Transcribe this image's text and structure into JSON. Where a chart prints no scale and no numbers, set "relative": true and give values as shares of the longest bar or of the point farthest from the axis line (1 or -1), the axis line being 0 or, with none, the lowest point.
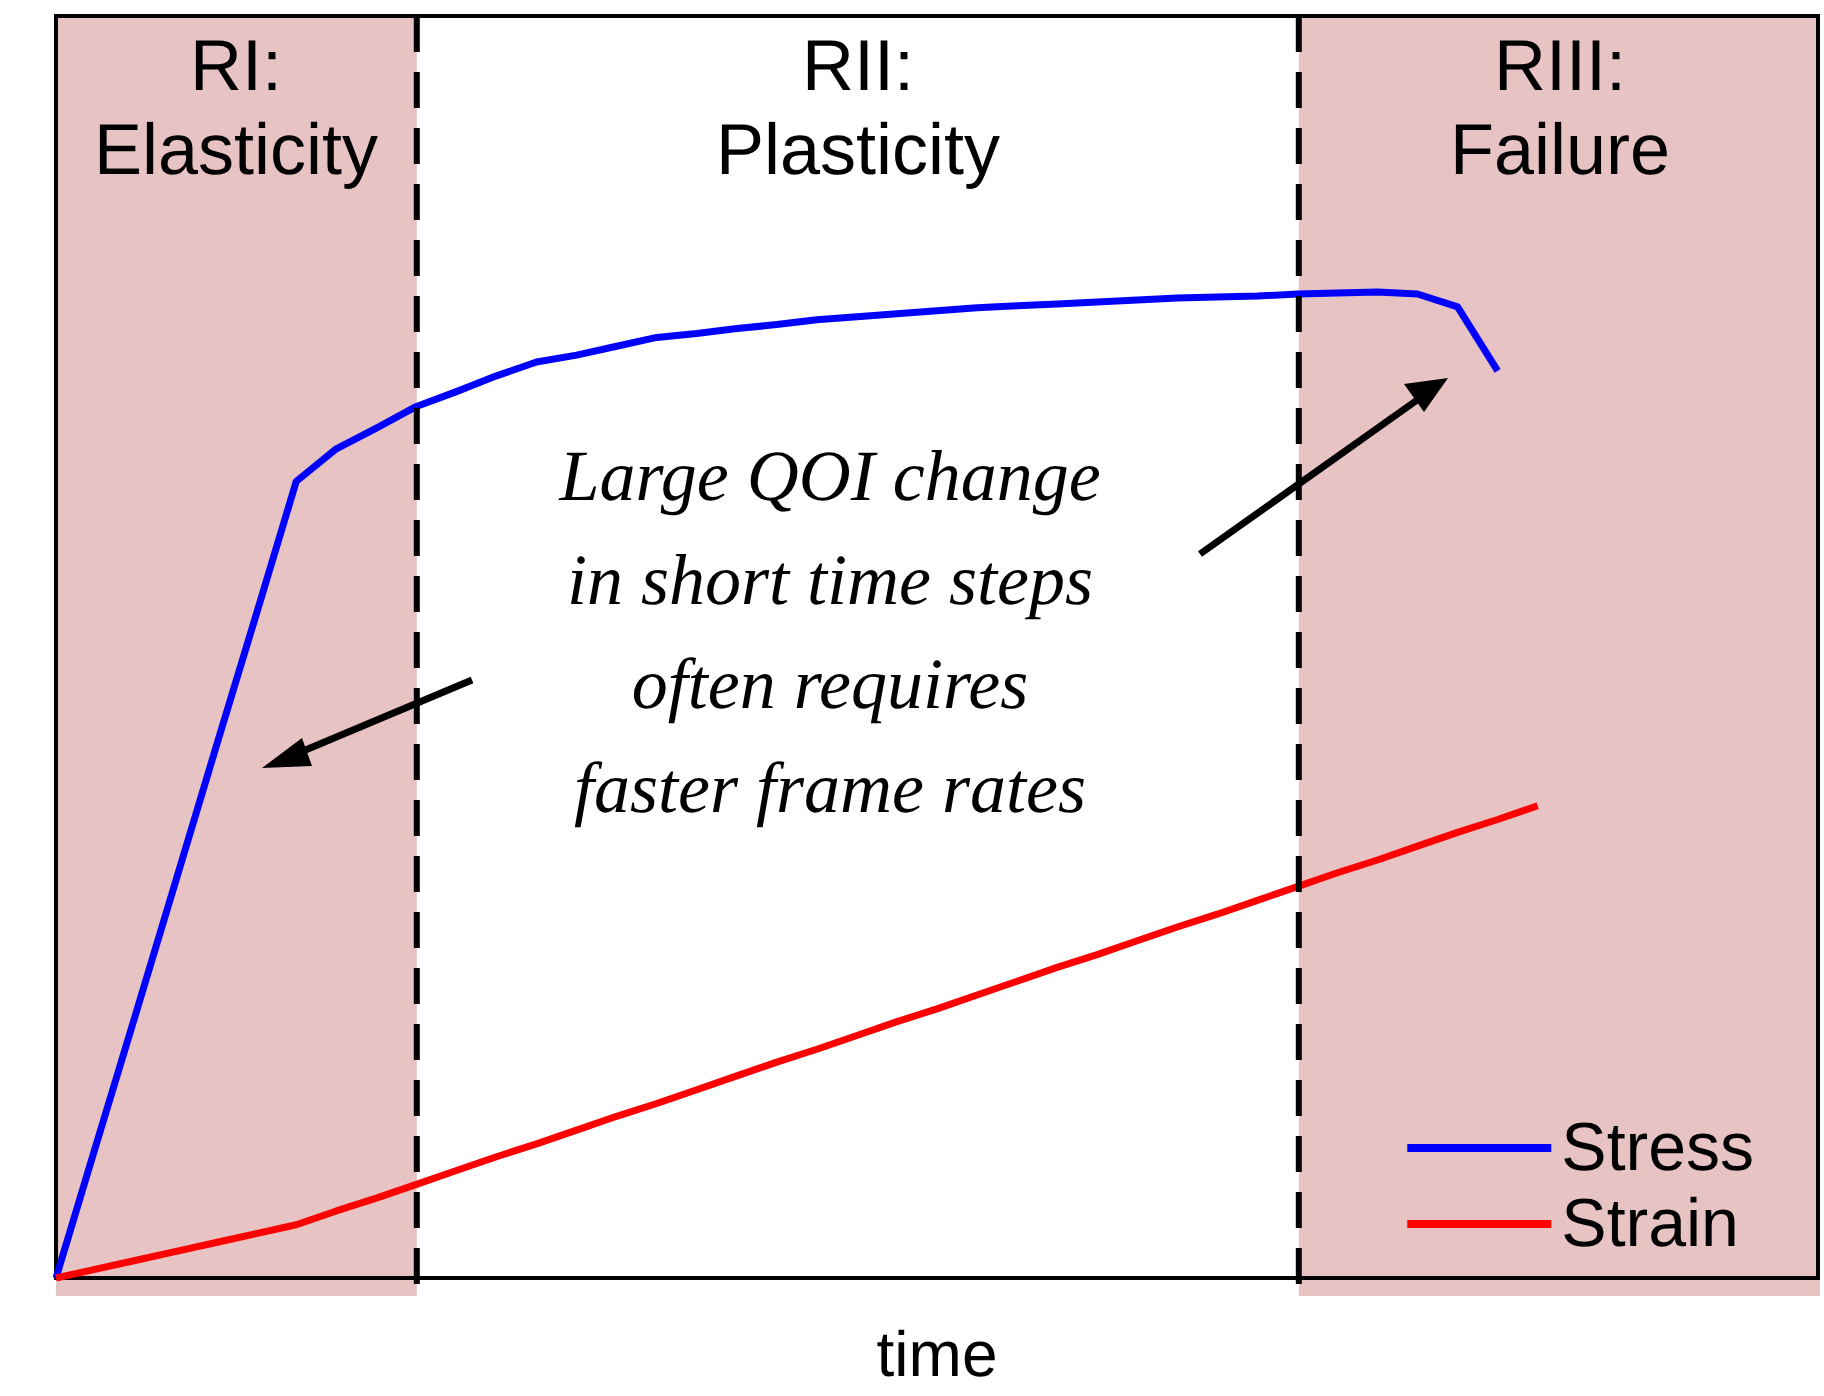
{
  "chart_data": {
    "type": "line",
    "relative": true,
    "xlabel": "time",
    "ylim": [
      0,
      1.28
    ],
    "grid": false,
    "marker": "none",
    "line_style": "solid",
    "legend": "bottom right",
    "categories": [
      null,
      null,
      null,
      null,
      null,
      null,
      null,
      null,
      null,
      null,
      null,
      null,
      null,
      null,
      null,
      null,
      null,
      null,
      null,
      null,
      null,
      null,
      null,
      null,
      null,
      null,
      null,
      null,
      null,
      null,
      null,
      null,
      null,
      null,
      null,
      null,
      null,
      null,
      null,
      null,
      null,
      null,
      null,
      null,
      null
    ],
    "series": [
      {
        "name": "Stress",
        "color": "#0000ff",
        "values": [
          0,
          0.135,
          0.269,
          0.404,
          0.539,
          0.673,
          0.808,
          0.841,
          0.862,
          0.884,
          0.899,
          0.915,
          0.929,
          0.936,
          0.945,
          0.954,
          0.958,
          0.963,
          0.967,
          0.972,
          0.975,
          0.978,
          0.981,
          0.984,
          0.986,
          0.988,
          0.99,
          0.992,
          0.994,
          0.995,
          0.996,
          0.998,
          0.999,
          1.0,
          0.998,
          0.985,
          0.92,
          null,
          null,
          null,
          null,
          null,
          null,
          null,
          null
        ]
      },
      {
        "name": "Strain",
        "color": "#ff0000",
        "values": [
          0,
          0.009,
          0.018,
          0.027,
          0.036,
          0.045,
          0.054,
          0.068,
          0.081,
          0.095,
          0.109,
          0.123,
          0.136,
          0.15,
          0.164,
          0.177,
          0.191,
          0.205,
          0.219,
          0.232,
          0.246,
          0.26,
          0.273,
          0.287,
          0.301,
          0.315,
          0.328,
          0.342,
          0.356,
          0.369,
          0.383,
          0.397,
          0.411,
          0.424,
          0.438,
          0.452,
          0.465,
          0.479,
          null,
          null,
          null,
          null,
          null,
          null,
          null
        ]
      }
    ],
    "annotations": [
      "RI:\nElasticity",
      "RII:\nPlasticity",
      "RIII:\nFailure",
      "Large QOI change\nin short time steps\noften requires\nfaster frame rates"
    ]
  }
}
